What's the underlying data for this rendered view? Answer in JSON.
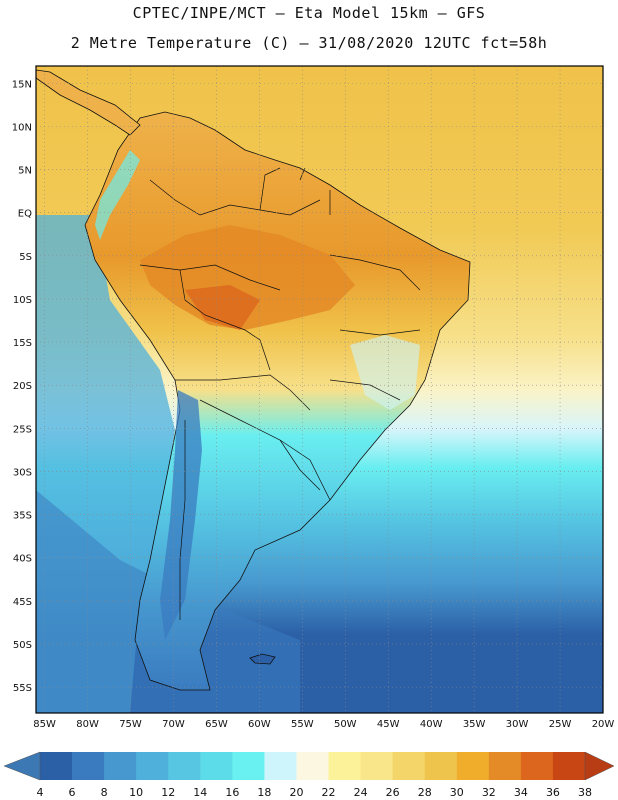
{
  "header": {
    "line1": "CPTEC/INPE/MCT –  Eta Model 15km – GFS",
    "line2": "2 Metre Temperature (C) – 31/08/2020 12UTC fct=58h"
  },
  "map": {
    "lat_labels": [
      "15N",
      "10N",
      "5N",
      "EQ",
      "5S",
      "10S",
      "15S",
      "20S",
      "25S",
      "30S",
      "35S",
      "40S",
      "45S",
      "50S",
      "55S"
    ],
    "lon_labels": [
      "85W",
      "80W",
      "75W",
      "70W",
      "65W",
      "60W",
      "55W",
      "50W",
      "45W",
      "40W",
      "35W",
      "30W",
      "25W",
      "20W"
    ],
    "lat_range": [
      -58,
      17
    ],
    "lon_range": [
      -86,
      -20
    ]
  },
  "colorbar": {
    "labels": [
      "4",
      "6",
      "8",
      "10",
      "12",
      "14",
      "16",
      "18",
      "20",
      "22",
      "24",
      "26",
      "28",
      "30",
      "32",
      "34",
      "36",
      "38"
    ],
    "colors": [
      "#2b5fa6",
      "#3a7bc0",
      "#4798cf",
      "#4fb0dc",
      "#56c6e3",
      "#5cdbe8",
      "#69f0f0",
      "#cdf5fb",
      "#fcf7e1",
      "#fcf29a",
      "#f9e58a",
      "#f3d56a",
      "#efc44d",
      "#f0ad2b",
      "#e48a26",
      "#dc661d",
      "#c84514"
    ],
    "low_arrow_color": "#3c78b4",
    "high_arrow_color": "#b83c14"
  }
}
